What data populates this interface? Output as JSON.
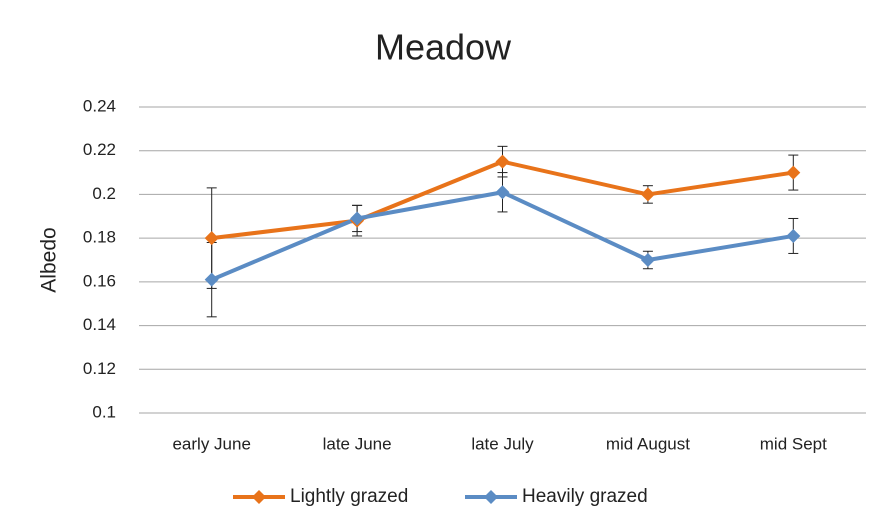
{
  "chart_data": {
    "type": "line",
    "title": "Meadow",
    "y_label": "Albedo",
    "categories": [
      "early June",
      "late June",
      "late July",
      "mid August",
      "mid Sept"
    ],
    "series": [
      {
        "name": "Lightly grazed",
        "color": "#e8731a",
        "values": [
          0.18,
          0.188,
          0.215,
          0.2,
          0.21
        ],
        "errors": [
          0.023,
          0.007,
          0.007,
          0.004,
          0.008
        ]
      },
      {
        "name": "Heavily grazed",
        "color": "#5b8cc4",
        "values": [
          0.161,
          0.189,
          0.201,
          0.17,
          0.181
        ],
        "errors": [
          0.017,
          0.006,
          0.009,
          0.004,
          0.008
        ]
      }
    ],
    "ylim": [
      0.1,
      0.24
    ],
    "yticks": [
      0.1,
      0.12,
      0.14,
      0.16,
      0.18,
      0.2,
      0.22,
      0.24
    ],
    "grid": true,
    "legend": "bottom"
  }
}
